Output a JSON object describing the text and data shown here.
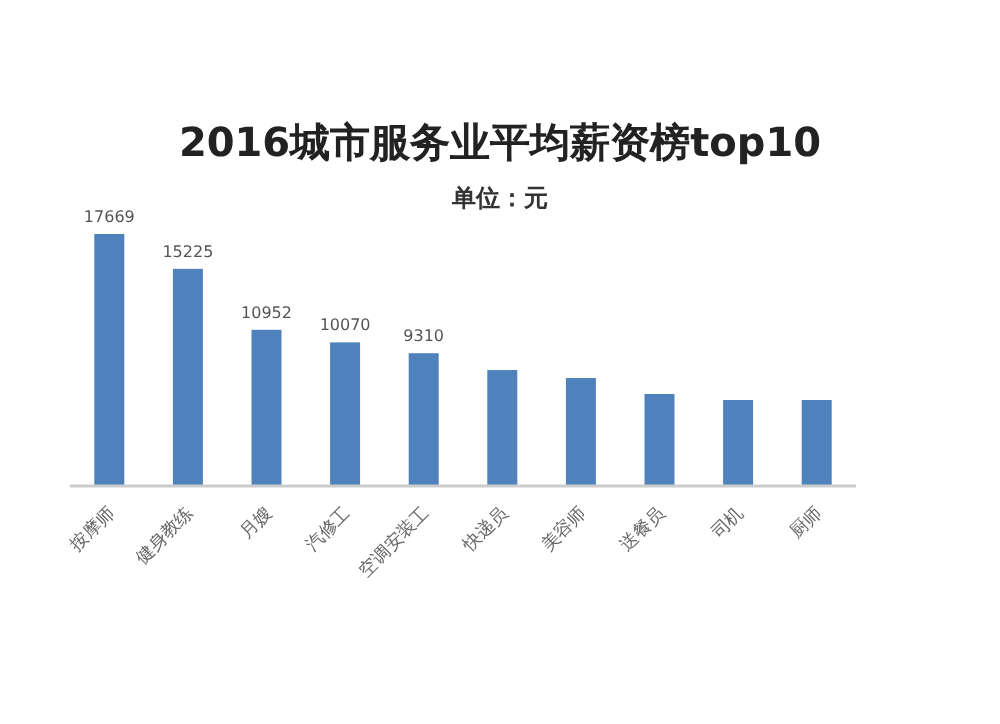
{
  "chart_data": {
    "type": "bar",
    "title": "2016城市服务业平均薪资榜top10",
    "subtitle": "单位：元",
    "categories": [
      "按摩师",
      "健身教练",
      "月嫂",
      "汽修工",
      "空调安装工",
      "快递员",
      "美容师",
      "送餐员",
      "司机",
      "厨师"
    ],
    "values": [
      17669,
      15225,
      10952,
      10070,
      9310,
      8130,
      7570,
      6450,
      6030,
      6030
    ],
    "value_labels": [
      "17669",
      "15225",
      "10952",
      "10070",
      "9310",
      null,
      null,
      null,
      null,
      null
    ],
    "color": "#4f81bd"
  }
}
